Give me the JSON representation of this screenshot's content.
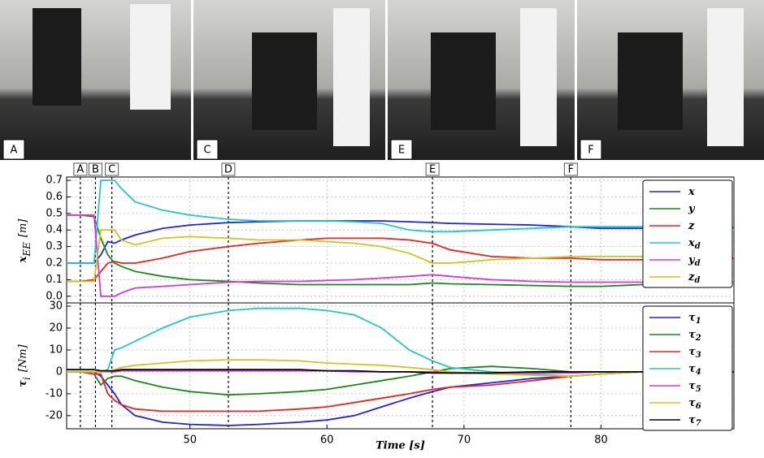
{
  "photos": [
    {
      "label": "A"
    },
    {
      "label": "C"
    },
    {
      "label": "E"
    },
    {
      "label": "F"
    }
  ],
  "chart_data": [
    {
      "type": "line",
      "ylabel": {
        "main": "x",
        "sub": "EE",
        "unit": "[m]"
      },
      "x": [
        41,
        42,
        43,
        43.5,
        44,
        44.5,
        45,
        46,
        48,
        50,
        52.8,
        55,
        58,
        60,
        62,
        64,
        66,
        67.7,
        69,
        72,
        75,
        77.8,
        80,
        83,
        86,
        89.7
      ],
      "xlim": [
        41,
        89.7
      ],
      "ylim": [
        -0.05,
        0.72
      ],
      "yticks": [
        {
          "value": 0,
          "label": "0.0"
        },
        0.1,
        0.2,
        0.3,
        0.4,
        0.5,
        0.6,
        0.7
      ],
      "grid": true,
      "legend": "right",
      "events": [
        {
          "x": 42,
          "label": "A"
        },
        {
          "x": 43.1,
          "label": "B"
        },
        {
          "x": 44.3,
          "label": "C"
        },
        {
          "x": 52.8,
          "label": "D"
        },
        {
          "x": 67.7,
          "label": "E"
        },
        {
          "x": 77.8,
          "label": "F"
        }
      ],
      "series": [
        {
          "name": "x",
          "color": "#2020e0",
          "values": [
            0.2,
            0.2,
            0.2,
            0.25,
            0.33,
            0.32,
            0.34,
            0.37,
            0.41,
            0.43,
            0.445,
            0.45,
            0.455,
            0.455,
            0.455,
            0.455,
            0.45,
            0.445,
            0.44,
            0.435,
            0.43,
            0.42,
            0.41,
            0.41,
            0.415,
            0.415
          ]
        },
        {
          "name": "y",
          "color": "#1a8a1a",
          "values": [
            0.49,
            0.49,
            0.48,
            0.35,
            0.25,
            0.2,
            0.18,
            0.15,
            0.12,
            0.1,
            0.09,
            0.08,
            0.07,
            0.07,
            0.07,
            0.07,
            0.07,
            0.08,
            0.075,
            0.07,
            0.065,
            0.06,
            0.06,
            0.07,
            0.08,
            0.085
          ]
        },
        {
          "name": "z",
          "color": "#ee2222",
          "values": [
            0.09,
            0.09,
            0.1,
            0.15,
            0.2,
            0.21,
            0.2,
            0.2,
            0.23,
            0.27,
            0.3,
            0.32,
            0.34,
            0.35,
            0.35,
            0.35,
            0.34,
            0.32,
            0.28,
            0.24,
            0.23,
            0.23,
            0.22,
            0.22,
            0.23,
            0.23
          ]
        },
        {
          "name": "x",
          "sub": "d",
          "color": "#22c8c8",
          "values": [
            0.2,
            0.2,
            0.2,
            0.7,
            0.7,
            0.7,
            0.65,
            0.57,
            0.52,
            0.49,
            0.465,
            0.455,
            0.455,
            0.455,
            0.45,
            0.44,
            0.4,
            0.39,
            0.39,
            0.4,
            0.41,
            0.42,
            0.42,
            0.42,
            0.42,
            0.42
          ]
        },
        {
          "name": "y",
          "sub": "d",
          "color": "#dd33dd",
          "values": [
            0.49,
            0.49,
            0.49,
            0.0,
            0.0,
            0.0,
            0.02,
            0.05,
            0.06,
            0.07,
            0.085,
            0.09,
            0.09,
            0.095,
            0.1,
            0.11,
            0.12,
            0.13,
            0.12,
            0.1,
            0.09,
            0.085,
            0.085,
            0.085,
            0.085,
            0.085
          ]
        },
        {
          "name": "z",
          "sub": "d",
          "color": "#c8c820",
          "values": [
            0.09,
            0.09,
            0.09,
            0.4,
            0.4,
            0.4,
            0.34,
            0.31,
            0.35,
            0.36,
            0.35,
            0.34,
            0.34,
            0.33,
            0.32,
            0.3,
            0.26,
            0.2,
            0.2,
            0.22,
            0.23,
            0.24,
            0.24,
            0.24,
            0.24,
            0.24
          ]
        }
      ]
    },
    {
      "type": "line",
      "ylabel": {
        "main": "τ",
        "sub": "i",
        "unit": "[Nm]"
      },
      "xlabel": "Time [s]",
      "x": [
        41,
        42,
        43,
        43.5,
        44,
        44.5,
        45,
        46,
        48,
        50,
        52.8,
        55,
        58,
        60,
        62,
        64,
        66,
        67.7,
        69,
        72,
        75,
        77.8,
        80,
        83,
        86,
        89.7
      ],
      "xlim": [
        41,
        89.7
      ],
      "ylim": [
        -26,
        31.5
      ],
      "xticks": [
        50,
        60,
        70,
        80
      ],
      "yticks": [
        -20,
        -10,
        0,
        10,
        20,
        30
      ],
      "grid": true,
      "legend": "right",
      "series": [
        {
          "name": "τ",
          "sub": "1",
          "color": "#2020e0",
          "values": [
            0,
            0,
            0,
            -2,
            -6,
            -10,
            -15,
            -20,
            -23,
            -24,
            -24.5,
            -24,
            -23,
            -22,
            -20,
            -16,
            -12,
            -9,
            -7,
            -5,
            -3,
            -2,
            -1,
            0,
            0,
            0
          ]
        },
        {
          "name": "τ",
          "sub": "2",
          "color": "#1a8a1a",
          "values": [
            0,
            0,
            -1,
            -6,
            -3,
            -2,
            -2,
            -4,
            -7,
            -9,
            -10.5,
            -10,
            -9,
            -8,
            -6,
            -4,
            -2,
            0,
            1.5,
            2.5,
            1.5,
            0,
            0,
            0,
            0,
            0
          ]
        },
        {
          "name": "τ",
          "sub": "3",
          "color": "#ee2222",
          "values": [
            0,
            0,
            -1,
            -1,
            -10,
            -13,
            -15,
            -17,
            -18,
            -18,
            -18,
            -18,
            -17,
            -16,
            -14,
            -12,
            -10,
            -8,
            -7,
            -6,
            -4,
            -2,
            -1,
            0,
            0,
            0
          ]
        },
        {
          "name": "τ",
          "sub": "4",
          "color": "#22c8c8",
          "values": [
            0,
            0,
            0,
            0,
            1,
            10,
            11,
            14,
            20,
            25,
            28,
            29,
            29,
            28,
            26,
            20,
            10,
            5,
            2,
            0,
            -1,
            -2,
            -1,
            0,
            0,
            0
          ]
        },
        {
          "name": "τ",
          "sub": "5",
          "color": "#dd33dd",
          "values": [
            0,
            0,
            0,
            0,
            0,
            0,
            0.5,
            0.5,
            0.5,
            0.5,
            0.5,
            0.5,
            0.5,
            0.5,
            0,
            0,
            0,
            0,
            -0.5,
            -0.5,
            -0.5,
            -0.5,
            0,
            0,
            0,
            0
          ]
        },
        {
          "name": "τ",
          "sub": "6",
          "color": "#c8c820",
          "values": [
            0,
            0,
            0,
            0,
            0,
            1,
            2,
            3,
            4,
            5,
            5.5,
            5.5,
            5,
            4,
            3.5,
            3,
            2,
            1,
            0,
            -1,
            -1.5,
            -2,
            -1,
            0,
            0,
            0
          ]
        },
        {
          "name": "τ",
          "sub": "7",
          "color": "#000000",
          "values": [
            1,
            1,
            1,
            0.5,
            0.5,
            0.5,
            1,
            1,
            1,
            1,
            1,
            1,
            1,
            0.5,
            0.5,
            0,
            0,
            -0.5,
            -0.5,
            -0.5,
            0,
            0,
            0,
            0,
            0,
            0
          ]
        }
      ]
    }
  ]
}
